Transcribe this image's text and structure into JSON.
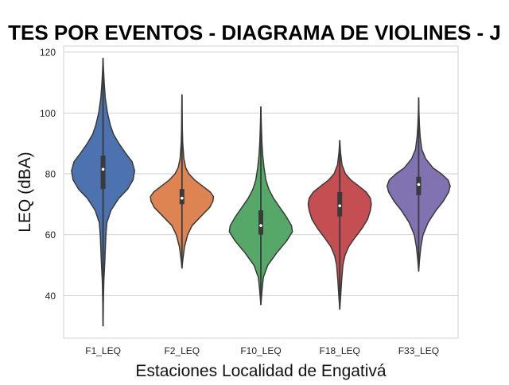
{
  "chart_data": {
    "type": "violin",
    "title": "TES POR EVENTOS - DIAGRAMA DE VIOLINES - J",
    "xlabel": "Estaciones Localidad de Engativá",
    "ylabel": "LEQ (dBA)",
    "ylim": [
      26,
      122
    ],
    "yticks": [
      40,
      60,
      80,
      100,
      120
    ],
    "grid": "horizontal",
    "series": [
      {
        "name": "F1_LEQ",
        "color": "#4c72b0",
        "whisker": [
          30,
          118
        ],
        "box": [
          75,
          86
        ],
        "median": 81.5,
        "density": [
          [
            30,
            0
          ],
          [
            38,
            0.01
          ],
          [
            45,
            0.025
          ],
          [
            50,
            0.05
          ],
          [
            55,
            0.07
          ],
          [
            60,
            0.09
          ],
          [
            64,
            0.12
          ],
          [
            68,
            0.25
          ],
          [
            72,
            0.5
          ],
          [
            75,
            0.78
          ],
          [
            78,
            0.95
          ],
          [
            81,
            1.0
          ],
          [
            84,
            0.92
          ],
          [
            87,
            0.7
          ],
          [
            90,
            0.5
          ],
          [
            93,
            0.33
          ],
          [
            96,
            0.23
          ],
          [
            100,
            0.14
          ],
          [
            105,
            0.07
          ],
          [
            110,
            0.035
          ],
          [
            114,
            0.015
          ],
          [
            118,
            0
          ]
        ]
      },
      {
        "name": "F2_LEQ",
        "color": "#dd8452",
        "whisker": [
          49,
          106
        ],
        "box": [
          70,
          75
        ],
        "median": 72,
        "density": [
          [
            49,
            0
          ],
          [
            52,
            0.03
          ],
          [
            56,
            0.08
          ],
          [
            60,
            0.18
          ],
          [
            63,
            0.32
          ],
          [
            66,
            0.6
          ],
          [
            69,
            0.88
          ],
          [
            71,
            0.98
          ],
          [
            72.5,
            1.0
          ],
          [
            74,
            0.9
          ],
          [
            76,
            0.65
          ],
          [
            78,
            0.4
          ],
          [
            80,
            0.22
          ],
          [
            82,
            0.12
          ],
          [
            85,
            0.06
          ],
          [
            90,
            0.025
          ],
          [
            95,
            0.012
          ],
          [
            100,
            0.006
          ],
          [
            106,
            0
          ]
        ]
      },
      {
        "name": "F10_LEQ",
        "color": "#55a868",
        "whisker": [
          37,
          102
        ],
        "box": [
          60,
          68
        ],
        "median": 63,
        "density": [
          [
            37,
            0
          ],
          [
            42,
            0.04
          ],
          [
            46,
            0.08
          ],
          [
            50,
            0.22
          ],
          [
            54,
            0.5
          ],
          [
            58,
            0.82
          ],
          [
            61,
            1.0
          ],
          [
            63,
            0.97
          ],
          [
            66,
            0.8
          ],
          [
            69,
            0.6
          ],
          [
            72,
            0.4
          ],
          [
            75,
            0.25
          ],
          [
            78,
            0.16
          ],
          [
            82,
            0.1
          ],
          [
            86,
            0.06
          ],
          [
            90,
            0.035
          ],
          [
            95,
            0.018
          ],
          [
            102,
            0
          ]
        ]
      },
      {
        "name": "F18_LEQ",
        "color": "#c44e52",
        "whisker": [
          35.5,
          91
        ],
        "box": [
          66,
          74
        ],
        "median": 69.5,
        "density": [
          [
            35.5,
            0
          ],
          [
            40,
            0.03
          ],
          [
            45,
            0.06
          ],
          [
            50,
            0.1
          ],
          [
            53,
            0.16
          ],
          [
            56,
            0.28
          ],
          [
            59,
            0.48
          ],
          [
            62,
            0.7
          ],
          [
            65,
            0.88
          ],
          [
            68,
            0.97
          ],
          [
            70,
            1.0
          ],
          [
            72,
            0.97
          ],
          [
            74,
            0.84
          ],
          [
            76,
            0.6
          ],
          [
            78,
            0.35
          ],
          [
            80,
            0.18
          ],
          [
            83,
            0.07
          ],
          [
            87,
            0.025
          ],
          [
            91,
            0
          ]
        ]
      },
      {
        "name": "F33_LEQ",
        "color": "#8172b2",
        "whisker": [
          48,
          105
        ],
        "box": [
          73,
          79
        ],
        "median": 76.5,
        "density": [
          [
            48,
            0
          ],
          [
            52,
            0.03
          ],
          [
            56,
            0.07
          ],
          [
            60,
            0.14
          ],
          [
            64,
            0.3
          ],
          [
            68,
            0.55
          ],
          [
            71,
            0.78
          ],
          [
            74,
            0.95
          ],
          [
            76,
            1.0
          ],
          [
            78,
            0.93
          ],
          [
            80,
            0.72
          ],
          [
            82,
            0.45
          ],
          [
            85,
            0.22
          ],
          [
            88,
            0.1
          ],
          [
            92,
            0.05
          ],
          [
            96,
            0.025
          ],
          [
            100,
            0.01
          ],
          [
            105,
            0
          ]
        ]
      }
    ]
  }
}
